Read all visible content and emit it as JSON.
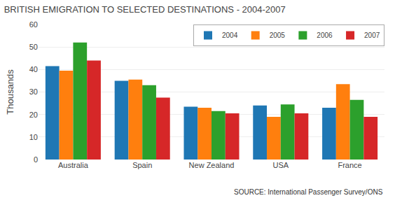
{
  "chart_data": {
    "type": "bar",
    "title": "BRITISH EMIGRATION TO SELECTED DESTINATIONS - 2004-2007",
    "ylabel": "Thousands",
    "annotations": [
      "SOURCE: International Passenger Survey/ONS"
    ],
    "categories": [
      "Australia",
      "Spain",
      "New Zealand",
      "USA",
      "France"
    ],
    "series": [
      {
        "name": "2004",
        "values": [
          41.5,
          35.0,
          23.5,
          24.0,
          23.0
        ]
      },
      {
        "name": "2005",
        "values": [
          39.5,
          35.5,
          23.0,
          19.0,
          33.5
        ]
      },
      {
        "name": "2006",
        "values": [
          52.0,
          33.0,
          21.5,
          24.5,
          26.5
        ]
      },
      {
        "name": "2007",
        "values": [
          44.0,
          27.5,
          20.5,
          20.5,
          19.0
        ]
      }
    ],
    "ylim": [
      0,
      60
    ],
    "yticks": [
      0,
      10,
      20,
      30,
      40,
      50,
      60
    ],
    "grid": true,
    "legend": "upper right"
  }
}
